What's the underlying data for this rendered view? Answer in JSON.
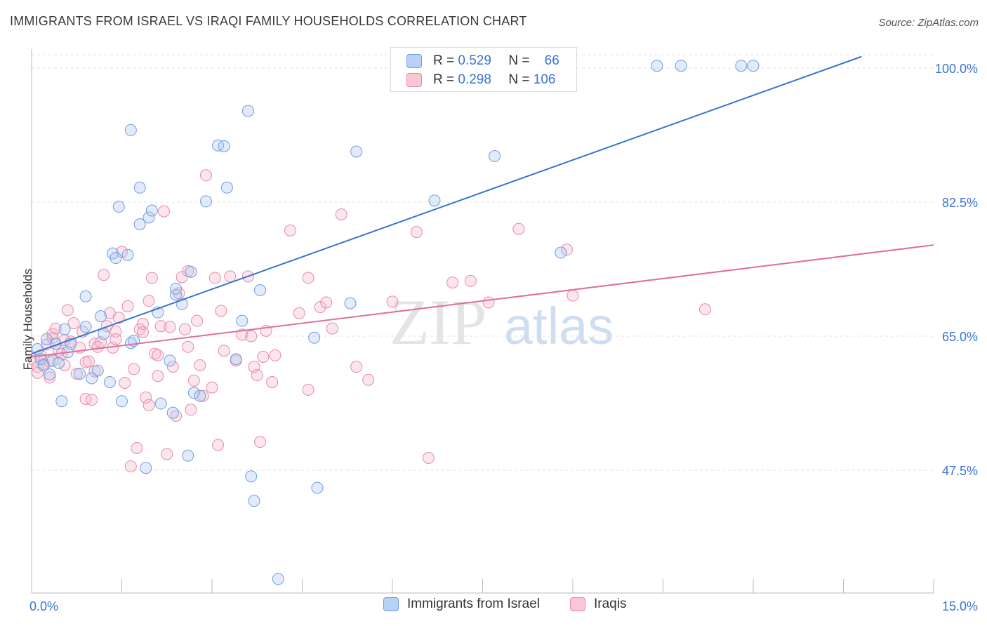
{
  "title": "IMMIGRANTS FROM ISRAEL VS IRAQI FAMILY HOUSEHOLDS CORRELATION CHART",
  "source": "Source: ZipAtlas.com",
  "watermark": {
    "zip": "ZIP",
    "atlas": "atlas"
  },
  "legend": {
    "rows": [
      {
        "r_label": "R =",
        "r_value": "0.529",
        "n_label": "N =",
        "n_value": "66"
      },
      {
        "r_label": "R =",
        "r_value": "0.298",
        "n_label": "N =",
        "n_value": "106"
      }
    ]
  },
  "bottom_legend": {
    "israel": "Immigrants from Israel",
    "iraqis": "Iraqis"
  },
  "chart_data": {
    "type": "scatter",
    "title": "IMMIGRANTS FROM ISRAEL VS IRAQI FAMILY HOUSEHOLDS CORRELATION CHART",
    "xlabel": "",
    "ylabel": "Family Households",
    "xlim": [
      0,
      15
    ],
    "ylim": [
      31,
      100
    ],
    "x_tick_labels": [
      "0.0%",
      "15.0%"
    ],
    "y_ticks": [
      47.5,
      65.0,
      82.5,
      100.0
    ],
    "y_tick_labels": [
      "47.5%",
      "65.0%",
      "82.5%",
      "100.0%"
    ],
    "grid": true,
    "colors": {
      "israel": "#6f9de0",
      "iraqis": "#e58aa6",
      "israel_line": "#3a74d0",
      "iraqis_line": "#e0709a",
      "tick_text": "#3b73d1"
    },
    "series": [
      {
        "name": "Immigrants from Israel",
        "trend": {
          "x": [
            0,
            13.8
          ],
          "y": [
            62.7,
            101.5
          ]
        },
        "points": [
          [
            0.1,
            63.3
          ],
          [
            0.15,
            62.0
          ],
          [
            0.2,
            61.2
          ],
          [
            0.3,
            60.0
          ],
          [
            0.35,
            61.8
          ],
          [
            0.25,
            64.6
          ],
          [
            0.4,
            64.0
          ],
          [
            0.45,
            61.5
          ],
          [
            0.5,
            56.5
          ],
          [
            0.55,
            65.9
          ],
          [
            0.6,
            62.9
          ],
          [
            0.65,
            64.0
          ],
          [
            0.8,
            60.1
          ],
          [
            0.9,
            66.2
          ],
          [
            0.9,
            70.2
          ],
          [
            1.1,
            60.5
          ],
          [
            1.15,
            67.6
          ],
          [
            1.2,
            65.3
          ],
          [
            1.3,
            59.0
          ],
          [
            1.35,
            75.8
          ],
          [
            1.4,
            75.2
          ],
          [
            1.45,
            81.9
          ],
          [
            1.5,
            56.5
          ],
          [
            1.6,
            75.6
          ],
          [
            1.65,
            64.1
          ],
          [
            1.65,
            91.9
          ],
          [
            1.7,
            64.4
          ],
          [
            1.8,
            84.4
          ],
          [
            1.8,
            79.6
          ],
          [
            1.9,
            47.8
          ],
          [
            1.95,
            80.5
          ],
          [
            2.0,
            81.4
          ],
          [
            2.1,
            68.1
          ],
          [
            2.15,
            56.2
          ],
          [
            2.3,
            61.8
          ],
          [
            2.35,
            55.0
          ],
          [
            2.4,
            70.4
          ],
          [
            2.5,
            69.2
          ],
          [
            2.6,
            49.4
          ],
          [
            2.65,
            73.4
          ],
          [
            2.7,
            57.6
          ],
          [
            2.8,
            57.2
          ],
          [
            2.9,
            82.6
          ],
          [
            3.1,
            89.9
          ],
          [
            3.2,
            89.8
          ],
          [
            3.25,
            84.4
          ],
          [
            3.4,
            62.0
          ],
          [
            3.5,
            67.0
          ],
          [
            3.6,
            94.4
          ],
          [
            3.65,
            46.7
          ],
          [
            3.7,
            43.5
          ],
          [
            3.8,
            71.0
          ],
          [
            4.1,
            33.3
          ],
          [
            4.7,
            64.8
          ],
          [
            4.75,
            45.2
          ],
          [
            5.3,
            69.3
          ],
          [
            5.4,
            89.1
          ],
          [
            6.7,
            82.7
          ],
          [
            7.7,
            88.5
          ],
          [
            8.8,
            75.9
          ],
          [
            10.4,
            100.3
          ],
          [
            10.8,
            100.3
          ],
          [
            11.8,
            100.3
          ],
          [
            12.0,
            100.3
          ],
          [
            2.4,
            71.2
          ],
          [
            1.0,
            59.5
          ]
        ]
      },
      {
        "name": "Iraqis",
        "trend": {
          "x": [
            0,
            15
          ],
          "y": [
            62.3,
            76.9
          ]
        },
        "points": [
          [
            0.05,
            61.8
          ],
          [
            0.1,
            61.0
          ],
          [
            0.1,
            60.2
          ],
          [
            0.15,
            62.5
          ],
          [
            0.2,
            61.4
          ],
          [
            0.25,
            63.9
          ],
          [
            0.3,
            61.7
          ],
          [
            0.35,
            64.8
          ],
          [
            0.35,
            65.3
          ],
          [
            0.4,
            66.0
          ],
          [
            0.45,
            63.1
          ],
          [
            0.5,
            62.7
          ],
          [
            0.55,
            61.2
          ],
          [
            0.6,
            68.4
          ],
          [
            0.65,
            64.3
          ],
          [
            0.7,
            66.7
          ],
          [
            0.8,
            63.5
          ],
          [
            0.85,
            65.6
          ],
          [
            0.9,
            61.6
          ],
          [
            0.9,
            56.8
          ],
          [
            1.0,
            56.7
          ],
          [
            1.05,
            64.0
          ],
          [
            1.1,
            63.6
          ],
          [
            1.15,
            64.2
          ],
          [
            1.2,
            73.0
          ],
          [
            1.25,
            66.3
          ],
          [
            1.3,
            68.0
          ],
          [
            1.35,
            63.5
          ],
          [
            1.4,
            65.6
          ],
          [
            1.45,
            67.4
          ],
          [
            1.5,
            76.0
          ],
          [
            1.55,
            58.9
          ],
          [
            1.6,
            68.9
          ],
          [
            1.65,
            48.0
          ],
          [
            1.7,
            60.7
          ],
          [
            1.75,
            50.4
          ],
          [
            1.8,
            65.9
          ],
          [
            1.85,
            66.6
          ],
          [
            1.9,
            57.0
          ],
          [
            1.95,
            69.6
          ],
          [
            2.0,
            72.6
          ],
          [
            2.05,
            62.7
          ],
          [
            2.1,
            59.8
          ],
          [
            2.15,
            66.3
          ],
          [
            2.2,
            81.3
          ],
          [
            2.25,
            49.6
          ],
          [
            2.3,
            66.2
          ],
          [
            2.35,
            61.0
          ],
          [
            2.4,
            54.6
          ],
          [
            2.45,
            70.6
          ],
          [
            2.5,
            72.7
          ],
          [
            2.55,
            65.9
          ],
          [
            2.6,
            73.5
          ],
          [
            2.65,
            55.4
          ],
          [
            2.7,
            59.2
          ],
          [
            2.75,
            67.0
          ],
          [
            2.8,
            61.2
          ],
          [
            2.85,
            57.2
          ],
          [
            2.9,
            86.0
          ],
          [
            3.0,
            58.3
          ],
          [
            3.05,
            72.6
          ],
          [
            3.1,
            50.8
          ],
          [
            3.15,
            68.3
          ],
          [
            3.2,
            63.1
          ],
          [
            3.3,
            72.8
          ],
          [
            3.4,
            61.8
          ],
          [
            3.5,
            65.2
          ],
          [
            3.6,
            72.8
          ],
          [
            3.65,
            65.0
          ],
          [
            3.7,
            61.0
          ],
          [
            3.75,
            59.9
          ],
          [
            3.8,
            51.2
          ],
          [
            3.9,
            65.7
          ],
          [
            4.0,
            59.0
          ],
          [
            4.05,
            62.5
          ],
          [
            4.3,
            78.8
          ],
          [
            4.45,
            68.0
          ],
          [
            4.6,
            72.6
          ],
          [
            4.8,
            68.8
          ],
          [
            4.9,
            69.4
          ],
          [
            5.0,
            66.0
          ],
          [
            5.15,
            80.9
          ],
          [
            5.4,
            61.0
          ],
          [
            5.6,
            59.3
          ],
          [
            6.0,
            69.5
          ],
          [
            6.4,
            78.6
          ],
          [
            6.6,
            49.1
          ],
          [
            7.0,
            72.0
          ],
          [
            7.3,
            72.2
          ],
          [
            7.6,
            69.4
          ],
          [
            8.1,
            79.0
          ],
          [
            8.9,
            76.3
          ],
          [
            9.0,
            70.3
          ],
          [
            11.2,
            68.5
          ],
          [
            0.75,
            60.1
          ],
          [
            1.05,
            60.4
          ],
          [
            2.1,
            62.5
          ],
          [
            0.3,
            59.6
          ],
          [
            1.4,
            64.6
          ],
          [
            2.6,
            63.6
          ],
          [
            3.85,
            62.3
          ],
          [
            0.55,
            64.5
          ],
          [
            4.6,
            58.0
          ],
          [
            1.95,
            56.0
          ],
          [
            1.85,
            65.5
          ],
          [
            0.95,
            61.7
          ]
        ]
      }
    ]
  }
}
